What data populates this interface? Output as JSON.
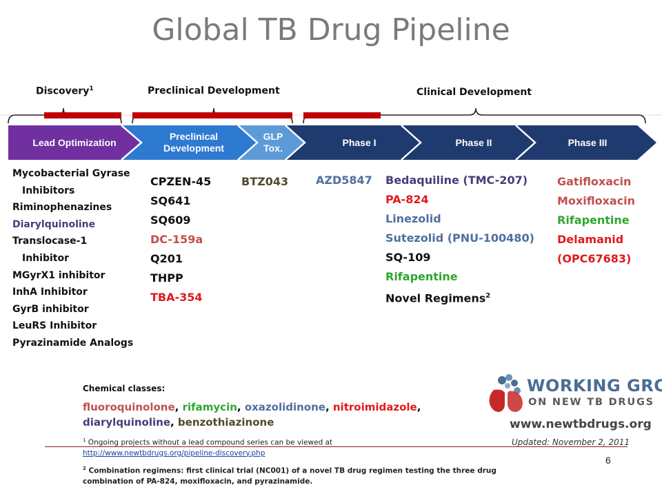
{
  "title": "Global TB Drug Pipeline",
  "stages": {
    "discovery": "Discovery",
    "discovery_sup": "1",
    "preclinical": "Preclinical Development",
    "clinical": "Clinical Development"
  },
  "pipeline": {
    "lead_optimization": "Lead Optimization",
    "preclinical_line1": "Preclinical",
    "preclinical_line2": "Development",
    "glp_line1": "GLP",
    "glp_line2": "Tox.",
    "phase1": "Phase I",
    "phase2": "Phase II",
    "phase3": "Phase III"
  },
  "discovery_items": [
    {
      "text": "Mycobacterial Gyrase",
      "color": "#111111",
      "indent": false
    },
    {
      "text": "Inhibitors",
      "color": "#111111",
      "indent": true
    },
    {
      "text": "Riminophenazines",
      "color": "#111111",
      "indent": false
    },
    {
      "text": "Diarylquinoline",
      "color": "#4b3a7a",
      "indent": false
    },
    {
      "text": "Translocase-1",
      "color": "#111111",
      "indent": false
    },
    {
      "text": "Inhibitor",
      "color": "#111111",
      "indent": true
    },
    {
      "text": "MGyrX1 inhibitor",
      "color": "#111111",
      "indent": false
    },
    {
      "text": "InhA Inhibitor",
      "color": "#111111",
      "indent": false
    },
    {
      "text": "GyrB inhibitor",
      "color": "#111111",
      "indent": false
    },
    {
      "text": "LeuRS Inhibitor",
      "color": "#111111",
      "indent": false
    },
    {
      "text": "Pyrazinamide Analogs",
      "color": "#111111",
      "indent": false
    }
  ],
  "preclinical_items": [
    {
      "text": "CPZEN-45",
      "color": "#111111"
    },
    {
      "text": "SQ641",
      "color": "#111111"
    },
    {
      "text": "SQ609",
      "color": "#111111"
    },
    {
      "text": "DC-159a",
      "color": "#c0504d"
    },
    {
      "text": "Q201",
      "color": "#111111"
    },
    {
      "text": "THPP",
      "color": "#111111"
    },
    {
      "text": "TBA-354",
      "color": "#e0191b"
    }
  ],
  "glp_items": [
    {
      "text": "BTZ043",
      "color": "#4f4a2a"
    }
  ],
  "phase1_items": [
    {
      "text": "AZD5847",
      "color": "#4f6fa0"
    }
  ],
  "phase2_items": [
    {
      "text": "Bedaquiline (TMC-207)",
      "color": "#4b3a7a",
      "sup": ""
    },
    {
      "text": "PA-824",
      "color": "#e0191b",
      "sup": ""
    },
    {
      "text": "Linezolid",
      "color": "#4f6fa0",
      "sup": ""
    },
    {
      "text": "Sutezolid (PNU-100480)",
      "color": "#4f6fa0",
      "sup": ""
    },
    {
      "text": "SQ-109",
      "color": "#111111",
      "sup": ""
    },
    {
      "text": "Rifapentine",
      "color": "#2ea62e",
      "sup": ""
    },
    {
      "text": "Novel  Regimens",
      "color": "#111111",
      "sup": "2"
    }
  ],
  "phase3_items": [
    {
      "text": "Gatifloxacin",
      "color": "#c0504d"
    },
    {
      "text": "Moxifloxacin",
      "color": "#c0504d"
    },
    {
      "text": "Rifapentine",
      "color": "#2ea62e"
    },
    {
      "text": "Delamanid",
      "color": "#e0191b"
    },
    {
      "text": "(OPC67683)",
      "color": "#e0191b"
    }
  ],
  "chemical_classes": {
    "heading": "Chemical classes:",
    "line1": [
      {
        "text": "fluoroquinolone",
        "color": "#c0504d"
      },
      {
        "text": ", ",
        "color": "#111111"
      },
      {
        "text": "rifamycin",
        "color": "#2ea62e"
      },
      {
        "text": ", ",
        "color": "#111111"
      },
      {
        "text": "oxazolidinone",
        "color": "#4f6fa0"
      },
      {
        "text": ", ",
        "color": "#111111"
      },
      {
        "text": "nitroimidazole",
        "color": "#e0191b"
      },
      {
        "text": ",",
        "color": "#111111"
      }
    ],
    "line2": [
      {
        "text": "diarylquinoline",
        "color": "#4b3a7a"
      },
      {
        "text": ", ",
        "color": "#111111"
      },
      {
        "text": "benzothiazinone",
        "color": "#4f4a2a"
      }
    ]
  },
  "footnote1": {
    "sup": "1",
    "text": " Ongoing projects  without a lead compound series can be viewed at",
    "link": "http://www.newtbdrugs.org/pipeline-discovery.php"
  },
  "footnote2": {
    "sup": "2",
    "line1": " Combination regimens: first clinical trial (NC001) of a novel TB drug regimen testing the three drug",
    "line2": "combination of PA-824, moxifloxacin, and pyrazinamide."
  },
  "logo": {
    "line1": "WORKING GROUP",
    "line2": "ON NEW TB DRUGS"
  },
  "website": "www.newtbdrugs.org",
  "updated": "Updated: November 2, 2011",
  "slide_number": "6",
  "colors": {
    "lead_optimization": "#7030a0",
    "preclinical": "#2e7ad0",
    "glp": "#5c9bd8",
    "clinical": "#1f3a6e",
    "red_bar": "#c00000"
  }
}
